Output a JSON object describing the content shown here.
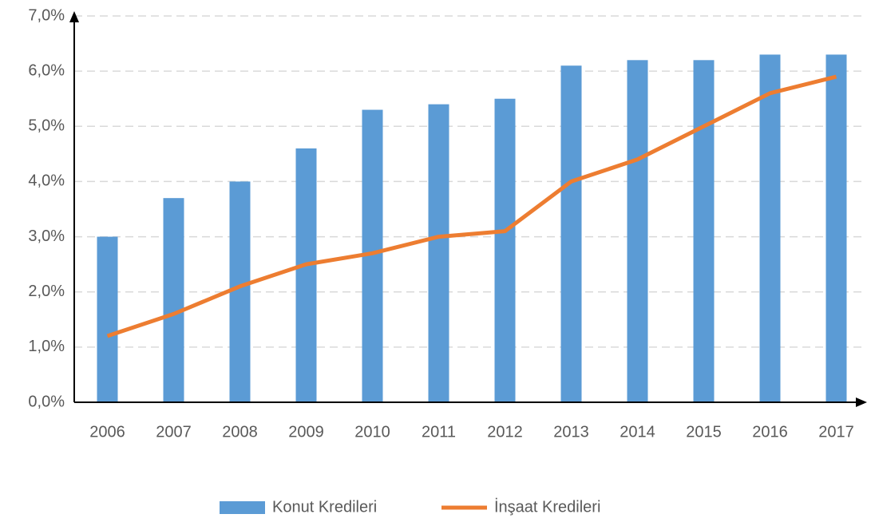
{
  "chart_data": {
    "type": "bar",
    "categories": [
      "2006",
      "2007",
      "2008",
      "2009",
      "2010",
      "2011",
      "2012",
      "2013",
      "2014",
      "2015",
      "2016",
      "2017"
    ],
    "series": [
      {
        "name": "Konut Kredileri",
        "type": "bar",
        "color": "#5b9bd5",
        "values": [
          3.0,
          3.7,
          4.0,
          4.6,
          5.3,
          5.4,
          5.5,
          6.1,
          6.2,
          6.2,
          6.3,
          6.3
        ]
      },
      {
        "name": "İnşaat Kredileri",
        "type": "line",
        "color": "#ed7d31",
        "values": [
          1.2,
          1.6,
          2.1,
          2.5,
          2.7,
          3.0,
          3.1,
          4.0,
          4.4,
          5.0,
          5.6,
          5.9
        ]
      }
    ],
    "ylim": [
      0,
      7
    ],
    "yticks": [
      {
        "value": 0,
        "label": "0,0%"
      },
      {
        "value": 1,
        "label": "1,0%"
      },
      {
        "value": 2,
        "label": "2,0%"
      },
      {
        "value": 3,
        "label": "3,0%"
      },
      {
        "value": 4,
        "label": "4,0%"
      },
      {
        "value": 5,
        "label": "5,0%"
      },
      {
        "value": 6,
        "label": "6,0%"
      },
      {
        "value": 7,
        "label": "7,0%"
      }
    ],
    "grid": true,
    "legend": "bottom"
  }
}
